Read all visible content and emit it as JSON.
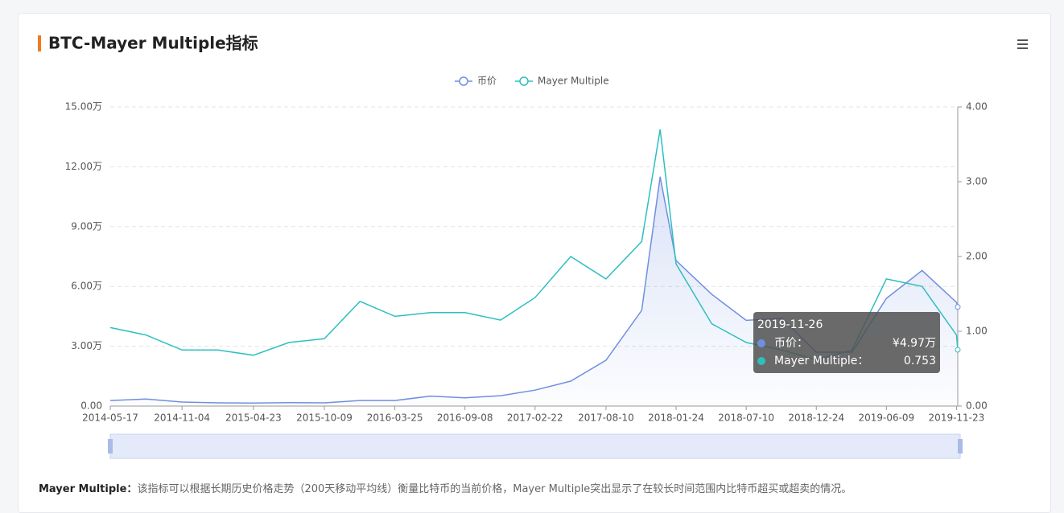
{
  "chart_data": {
    "type": "line",
    "title": "BTC-Mayer Multiple指标",
    "x": [
      "2014-05-17",
      "2014-08-10",
      "2014-11-04",
      "2015-01-28",
      "2015-04-23",
      "2015-07-17",
      "2015-10-09",
      "2016-01-02",
      "2016-03-25",
      "2016-06-18",
      "2016-09-08",
      "2016-12-02",
      "2017-02-22",
      "2017-05-18",
      "2017-08-10",
      "2017-11-03",
      "2017-12-17",
      "2018-01-24",
      "2018-04-19",
      "2018-07-10",
      "2018-10-03",
      "2018-12-24",
      "2019-03-19",
      "2019-06-09",
      "2019-09-02",
      "2019-11-23",
      "2019-11-26"
    ],
    "series": [
      {
        "name": "币价",
        "color": "#6f8fe0",
        "axis": "y",
        "values": [
          0.28,
          0.35,
          0.2,
          0.16,
          0.15,
          0.17,
          0.16,
          0.28,
          0.28,
          0.5,
          0.41,
          0.52,
          0.8,
          1.25,
          2.3,
          4.8,
          11.5,
          7.3,
          5.6,
          4.3,
          4.4,
          2.7,
          2.7,
          5.4,
          6.8,
          5.2,
          4.97
        ]
      },
      {
        "name": "Mayer Multiple",
        "color": "#2ebfbf",
        "axis": "y2",
        "values": [
          1.05,
          0.95,
          0.75,
          0.75,
          0.68,
          0.85,
          0.9,
          1.4,
          1.2,
          1.25,
          1.25,
          1.15,
          1.45,
          2.0,
          1.7,
          2.2,
          3.7,
          1.9,
          1.1,
          0.85,
          0.75,
          0.62,
          0.75,
          1.7,
          1.6,
          0.95,
          0.753
        ]
      }
    ],
    "xlim": [
      "2014-05-17",
      "2019-11-26"
    ],
    "xticks": [
      "2014-05-17",
      "2014-11-04",
      "2015-04-23",
      "2015-10-09",
      "2016-03-25",
      "2016-09-08",
      "2017-02-22",
      "2017-08-10",
      "2018-01-24",
      "2018-07-10",
      "2018-12-24",
      "2019-06-09",
      "2019-11-23"
    ],
    "ylim": [
      0,
      15
    ],
    "yticks": [
      {
        "value": 0,
        "label": "0.00"
      },
      {
        "value": 3,
        "label": "3.00万"
      },
      {
        "value": 6,
        "label": "6.00万"
      },
      {
        "value": 9,
        "label": "9.00万"
      },
      {
        "value": 12,
        "label": "12.00万"
      },
      {
        "value": 15,
        "label": "15.00万"
      }
    ],
    "y2lim": [
      0,
      4
    ],
    "y2ticks": [
      {
        "value": 0,
        "label": "0.00"
      },
      {
        "value": 1,
        "label": "1.00"
      },
      {
        "value": 2,
        "label": "2.00"
      },
      {
        "value": 3,
        "label": "3.00"
      },
      {
        "value": 4,
        "label": "4.00"
      }
    ],
    "grid": true,
    "tooltip": {
      "date": "2019-11-26",
      "rows": [
        {
          "name": "币价：",
          "value": "¥4.97万"
        },
        {
          "name": "Mayer Multiple：",
          "value": "0.753"
        }
      ]
    }
  },
  "footer": {
    "term": "Mayer Multiple：",
    "text": "该指标可以根据长期历史价格走势（200天移动平均线）衡量比特币的当前价格，Mayer Multiple突出显示了在较长时间范围内比特币超买或超卖的情况。"
  }
}
